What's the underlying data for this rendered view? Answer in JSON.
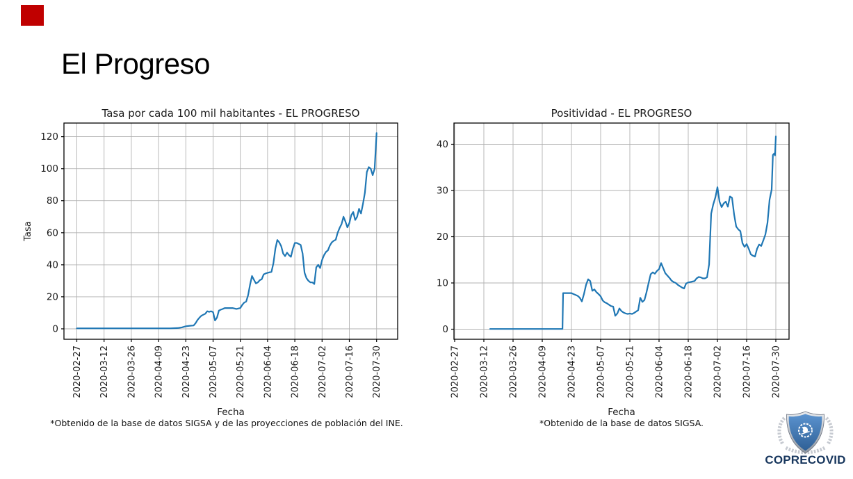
{
  "slide": {
    "title": "El Progreso",
    "accent_color": "#c00000",
    "background": "#ffffff"
  },
  "logo": {
    "text": "COPRECOVID",
    "text_color": "#17365d",
    "shield_blue_light": "#5b93cf",
    "shield_blue_dark": "#2f6096",
    "silver": "#c6cad1",
    "silver_dark": "#8e959e"
  },
  "chart_data": [
    {
      "type": "line",
      "title": "Tasa por cada 100 mil habitantes - EL PROGRESO",
      "xlabel": "Fecha",
      "ylabel": "Tasa",
      "footnote": "*Obtenido de la base de datos SIGSA y de las proyecciones de población del INE.",
      "line_color": "#1f77b4",
      "grid": true,
      "grid_color": "#b0b0b0",
      "ylim": [
        -6.5,
        128.5
      ],
      "yticks": [
        0,
        20,
        40,
        60,
        80,
        100,
        120
      ],
      "x_unit": "days since 2020-02-27",
      "x_tick_interval_days": 14,
      "x_tick_labels": [
        "2020-02-27",
        "2020-03-12",
        "2020-03-26",
        "2020-04-09",
        "2020-04-23",
        "2020-05-07",
        "2020-05-21",
        "2020-06-04",
        "2020-06-18",
        "2020-07-02",
        "2020-07-16",
        "2020-07-30"
      ],
      "series": [
        {
          "name": "tasa",
          "points": [
            [
              0,
              0.3
            ],
            [
              10,
              0.3
            ],
            [
              20,
              0.3
            ],
            [
              30,
              0.3
            ],
            [
              40,
              0.3
            ],
            [
              48,
              0.3
            ],
            [
              52,
              0.5
            ],
            [
              54,
              0.9
            ],
            [
              56,
              1.6
            ],
            [
              58,
              1.9
            ],
            [
              60,
              2.1
            ],
            [
              61,
              3.5
            ],
            [
              62,
              5.5
            ],
            [
              63,
              7.0
            ],
            [
              64,
              8.2
            ],
            [
              65,
              8.8
            ],
            [
              66,
              9.4
            ],
            [
              67,
              11.0
            ],
            [
              68,
              10.6
            ],
            [
              69,
              11.0
            ],
            [
              70,
              10.4
            ],
            [
              71,
              5.2
            ],
            [
              72,
              7.0
            ],
            [
              73,
              11.4
            ],
            [
              74,
              12.0
            ],
            [
              75,
              12.4
            ],
            [
              76,
              13.0
            ],
            [
              78,
              13.0
            ],
            [
              80,
              13.0
            ],
            [
              82,
              12.4
            ],
            [
              84,
              13.0
            ],
            [
              85,
              15.0
            ],
            [
              86,
              16.4
            ],
            [
              87,
              17.0
            ],
            [
              88,
              21.0
            ],
            [
              89,
              27.6
            ],
            [
              90,
              33.0
            ],
            [
              91,
              30.6
            ],
            [
              92,
              28.4
            ],
            [
              93,
              29.0
            ],
            [
              94,
              30.4
            ],
            [
              95,
              31.0
            ],
            [
              96,
              34.0
            ],
            [
              97,
              34.6
            ],
            [
              98,
              35.0
            ],
            [
              100,
              35.6
            ],
            [
              101,
              41.0
            ],
            [
              102,
              50.0
            ],
            [
              103,
              55.5
            ],
            [
              104,
              54.0
            ],
            [
              105,
              51.6
            ],
            [
              106,
              47.0
            ],
            [
              107,
              45.4
            ],
            [
              108,
              47.6
            ],
            [
              109,
              46.0
            ],
            [
              110,
              45.0
            ],
            [
              111,
              50.0
            ],
            [
              112,
              53.6
            ],
            [
              113,
              53.6
            ],
            [
              114,
              53.0
            ],
            [
              115,
              52.4
            ],
            [
              116,
              47.0
            ],
            [
              117,
              35.0
            ],
            [
              118,
              31.6
            ],
            [
              119,
              30.0
            ],
            [
              120,
              29.0
            ],
            [
              121,
              29.0
            ],
            [
              122,
              28.0
            ],
            [
              123,
              38.4
            ],
            [
              124,
              40.0
            ],
            [
              125,
              38.0
            ],
            [
              126,
              43.0
            ],
            [
              127,
              46.0
            ],
            [
              128,
              48.0
            ],
            [
              129,
              49.0
            ],
            [
              130,
              52.0
            ],
            [
              131,
              54.0
            ],
            [
              132,
              55.0
            ],
            [
              133,
              55.6
            ],
            [
              134,
              60.0
            ],
            [
              135,
              63.0
            ],
            [
              136,
              65.4
            ],
            [
              137,
              70.0
            ],
            [
              138,
              67.0
            ],
            [
              139,
              63.4
            ],
            [
              140,
              66.0
            ],
            [
              141,
              71.0
            ],
            [
              142,
              73.0
            ],
            [
              143,
              68.0
            ],
            [
              144,
              70.0
            ],
            [
              145,
              75.0
            ],
            [
              146,
              72.0
            ],
            [
              147,
              78.0
            ],
            [
              148,
              85.0
            ],
            [
              149,
              98.0
            ],
            [
              150,
              101.0
            ],
            [
              151,
              100.0
            ],
            [
              152,
              96.0
            ],
            [
              153,
              100.0
            ],
            [
              154,
              122.3
            ]
          ]
        }
      ]
    },
    {
      "type": "line",
      "title": "Positividad - EL PROGRESO",
      "xlabel": "Fecha",
      "ylabel": "",
      "footnote": "*Obtenido de la base de datos SIGSA.",
      "line_color": "#1f77b4",
      "grid": true,
      "grid_color": "#b0b0b0",
      "ylim": [
        -2.3,
        44.5
      ],
      "yticks": [
        0,
        10,
        20,
        30,
        40
      ],
      "x_unit": "days since 2020-02-27",
      "x_tick_interval_days": 14,
      "x_tick_labels": [
        "2020-02-27",
        "2020-03-12",
        "2020-03-26",
        "2020-04-09",
        "2020-04-23",
        "2020-05-07",
        "2020-05-21",
        "2020-06-04",
        "2020-06-18",
        "2020-07-02",
        "2020-07-16",
        "2020-07-30"
      ],
      "series": [
        {
          "name": "positividad",
          "points": [
            [
              17,
              0.05
            ],
            [
              25,
              0.05
            ],
            [
              33,
              0.05
            ],
            [
              41,
              0.05
            ],
            [
              48,
              0.05
            ],
            [
              51.7,
              0.05
            ],
            [
              52,
              7.8
            ],
            [
              54,
              7.8
            ],
            [
              56,
              7.8
            ],
            [
              57,
              7.6
            ],
            [
              58,
              7.4
            ],
            [
              59,
              7.2
            ],
            [
              60,
              6.8
            ],
            [
              61,
              6.0
            ],
            [
              62,
              7.6
            ],
            [
              63,
              9.6
            ],
            [
              64,
              10.8
            ],
            [
              65,
              10.4
            ],
            [
              66,
              8.3
            ],
            [
              67,
              8.6
            ],
            [
              68,
              8.0
            ],
            [
              69,
              7.6
            ],
            [
              70,
              7.1
            ],
            [
              71,
              6.2
            ],
            [
              72,
              5.8
            ],
            [
              73,
              5.6
            ],
            [
              74,
              5.3
            ],
            [
              75,
              5.0
            ],
            [
              76,
              4.9
            ],
            [
              77,
              2.9
            ],
            [
              78,
              3.4
            ],
            [
              79,
              4.5
            ],
            [
              80,
              3.9
            ],
            [
              81,
              3.6
            ],
            [
              82,
              3.4
            ],
            [
              83,
              3.3
            ],
            [
              84,
              3.4
            ],
            [
              85,
              3.3
            ],
            [
              86,
              3.5
            ],
            [
              87,
              3.8
            ],
            [
              88,
              4.1
            ],
            [
              89,
              6.8
            ],
            [
              90,
              5.9
            ],
            [
              91,
              6.3
            ],
            [
              92,
              8.0
            ],
            [
              93,
              10.0
            ],
            [
              94,
              11.9
            ],
            [
              95,
              12.3
            ],
            [
              96,
              12.0
            ],
            [
              97,
              12.6
            ],
            [
              98,
              13.0
            ],
            [
              99,
              14.3
            ],
            [
              100,
              13.2
            ],
            [
              101,
              12.1
            ],
            [
              102,
              11.6
            ],
            [
              103,
              11.1
            ],
            [
              104,
              10.5
            ],
            [
              105,
              10.2
            ],
            [
              106,
              10.0
            ],
            [
              107,
              9.6
            ],
            [
              108,
              9.3
            ],
            [
              109,
              9.0
            ],
            [
              110,
              8.8
            ],
            [
              111,
              9.9
            ],
            [
              112,
              10.1
            ],
            [
              113,
              10.2
            ],
            [
              114,
              10.3
            ],
            [
              115,
              10.4
            ],
            [
              116,
              11.0
            ],
            [
              117,
              11.3
            ],
            [
              118,
              11.2
            ],
            [
              119,
              11.0
            ],
            [
              120,
              11.0
            ],
            [
              121,
              11.2
            ],
            [
              122,
              14.0
            ],
            [
              123,
              25.0
            ],
            [
              124,
              27.0
            ],
            [
              125,
              28.5
            ],
            [
              126,
              30.7
            ],
            [
              127,
              27.6
            ],
            [
              128,
              26.4
            ],
            [
              129,
              27.2
            ],
            [
              130,
              27.6
            ],
            [
              131,
              26.5
            ],
            [
              132,
              28.7
            ],
            [
              133,
              28.4
            ],
            [
              134,
              24.8
            ],
            [
              135,
              22.2
            ],
            [
              136,
              21.6
            ],
            [
              137,
              21.2
            ],
            [
              138,
              18.6
            ],
            [
              139,
              17.8
            ],
            [
              140,
              18.4
            ],
            [
              141,
              17.4
            ],
            [
              142,
              16.2
            ],
            [
              143,
              15.9
            ],
            [
              144,
              15.7
            ],
            [
              145,
              17.4
            ],
            [
              146,
              18.3
            ],
            [
              147,
              18.0
            ],
            [
              148,
              19.2
            ],
            [
              149,
              20.5
            ],
            [
              150,
              23.0
            ],
            [
              151,
              28.0
            ],
            [
              152,
              30.2
            ],
            [
              152.6,
              37.7
            ],
            [
              153.2,
              38.0
            ],
            [
              153.6,
              37.6
            ],
            [
              154,
              41.7
            ]
          ]
        }
      ]
    }
  ]
}
